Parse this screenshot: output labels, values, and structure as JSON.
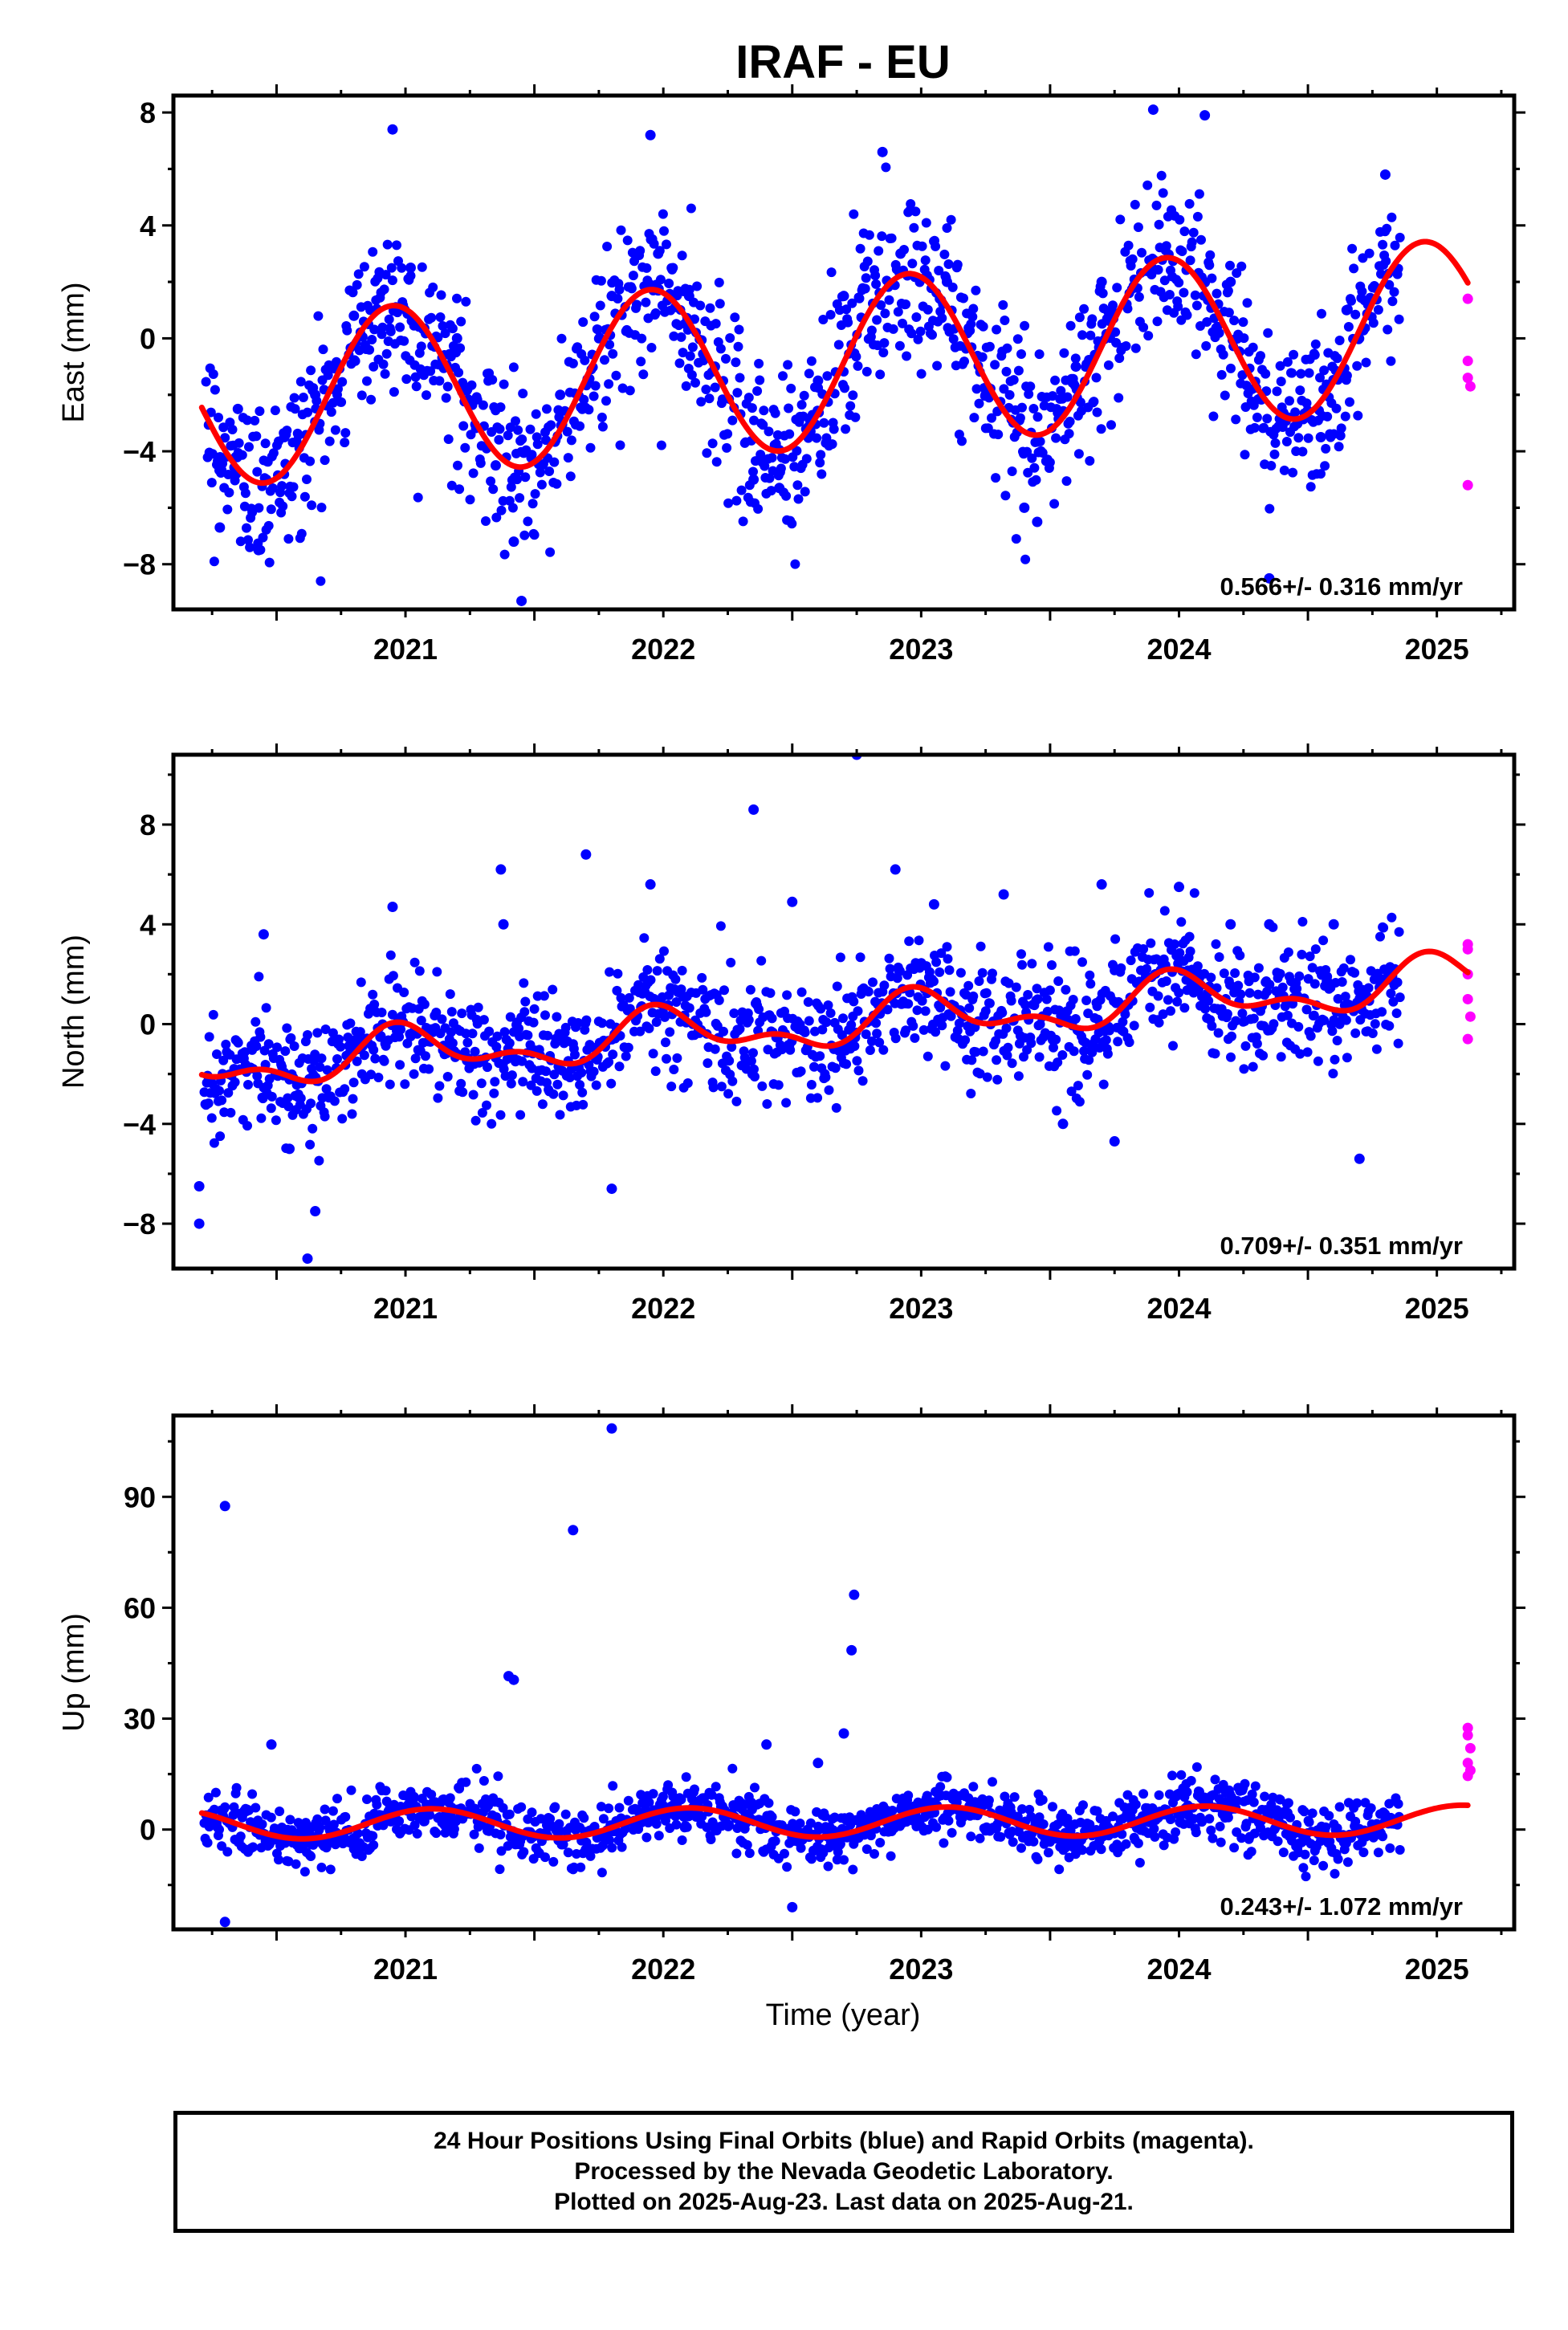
{
  "title": "IRAF - EU",
  "colors": {
    "final": "#0000ff",
    "rapid": "#ff00ff",
    "model": "#ff0000",
    "frame": "#000000"
  },
  "xlabel": "Time (year)",
  "chart_data": [
    {
      "type": "scatter",
      "ylabel": "East (mm)",
      "xlim": [
        2020.6,
        2025.8
      ],
      "ylim": [
        -9.6,
        8.6
      ],
      "yticks": [
        -8,
        -4,
        0,
        4,
        8
      ],
      "ytick_labels": [
        "−8",
        "−4",
        "0",
        "4",
        "8"
      ],
      "xticks": [
        2021,
        2022,
        2023,
        2024,
        2025
      ],
      "annotation": "0.566+/- 0.316 mm/yr",
      "model": {
        "offset": -0.85,
        "rate": 0.566,
        "annual_amplitude": 3.0,
        "annual_peak_year": 2021.45,
        "t_ref": 2023.2,
        "end_x": 2025.62
      },
      "series": [
        {
          "name": "Final Orbits",
          "color": "#0000ff",
          "x": [
            2020.78,
            2020.85,
            2020.93,
            2020.96,
            2021.03,
            2021.15,
            2021.3,
            2021.45,
            2021.52,
            2021.7,
            2021.85,
            2021.92,
            2021.95,
            2022.1,
            2022.3,
            2022.45,
            2022.48,
            2022.6,
            2022.7,
            2022.85,
            2022.95,
            2023.1,
            2023.2,
            2023.35,
            2023.42,
            2023.6,
            2023.75,
            2023.9,
            2023.95,
            2024.1,
            2024.2,
            2024.4,
            2024.6,
            2024.7,
            2024.85,
            2025.05,
            2025.15,
            2025.3
          ],
          "y": [
            -6.7,
            -2.5,
            -7.5,
            -5.0,
            -3.5,
            -2.0,
            0.8,
            7.4,
            2.5,
            0.0,
            -4.5,
            -7.2,
            -9.3,
            -2.0,
            1.5,
            7.2,
            3.0,
            1.5,
            -1.0,
            -5.0,
            -5.3,
            -1.5,
            1.5,
            6.6,
            3.0,
            2.0,
            -2.0,
            -6.0,
            -6.5,
            -1.0,
            2.0,
            8.1,
            7.9,
            2.0,
            -8.5,
            -3.5,
            1.0,
            5.8
          ]
        },
        {
          "name": "Rapid Orbits",
          "color": "#ff00ff",
          "x": [
            2025.62,
            2025.62,
            2025.62,
            2025.63,
            2025.62
          ],
          "y": [
            1.4,
            -0.8,
            -1.4,
            -1.7,
            -5.2
          ]
        }
      ]
    },
    {
      "type": "scatter",
      "ylabel": "North (mm)",
      "xlim": [
        2020.6,
        2025.8
      ],
      "ylim": [
        -9.8,
        10.8
      ],
      "yticks": [
        -8,
        -4,
        0,
        4,
        8
      ],
      "ytick_labels": [
        "−8",
        "−4",
        "0",
        "4",
        "8"
      ],
      "xticks": [
        2021,
        2022,
        2023,
        2024,
        2025
      ],
      "annotation": "0.709+/- 0.351 mm/yr",
      "model": {
        "offset": 0.0,
        "rate": 0.709,
        "annual_amplitude": 0.8,
        "annual_peak_year": 2021.5,
        "semiannual_amplitude": 0.5,
        "semiannual_peak_year": 2021.45,
        "t_ref": 2023.15,
        "end_x": 2025.62
      },
      "series": [
        {
          "name": "Final Orbits",
          "color": "#0000ff",
          "x": [
            2020.7,
            2020.7,
            2020.95,
            2021.05,
            2021.12,
            2021.15,
            2021.45,
            2021.87,
            2021.88,
            2022.2,
            2022.3,
            2022.45,
            2022.85,
            2023.0,
            2023.25,
            2023.4,
            2023.55,
            2023.82,
            2024.05,
            2024.2,
            2024.25,
            2024.5,
            2024.7,
            2024.85,
            2025.1,
            2025.2
          ],
          "y": [
            -6.5,
            -8.0,
            3.6,
            -5.0,
            -9.4,
            -7.5,
            4.7,
            6.2,
            4.0,
            6.8,
            -6.6,
            5.6,
            8.6,
            4.9,
            10.8,
            6.2,
            4.8,
            5.2,
            -4.0,
            5.6,
            -4.7,
            5.5,
            4.0,
            4.0,
            4.0,
            -5.4
          ]
        },
        {
          "name": "Rapid Orbits",
          "color": "#ff00ff",
          "x": [
            2025.62,
            2025.62,
            2025.62,
            2025.63,
            2025.62,
            2025.62
          ],
          "y": [
            3.2,
            2.0,
            1.0,
            0.3,
            -0.6,
            3.0
          ]
        }
      ]
    },
    {
      "type": "scatter",
      "ylabel": "Up (mm)",
      "xlim": [
        2020.6,
        2025.8
      ],
      "ylim": [
        -27,
        112
      ],
      "yticks": [
        0,
        30,
        60,
        90
      ],
      "ytick_labels": [
        "0",
        "30",
        "60",
        "90"
      ],
      "xticks": [
        2021,
        2022,
        2023,
        2024,
        2025
      ],
      "annotation": "0.243+/- 1.072 mm/yr",
      "model": {
        "offset": 2.0,
        "rate": 0.243,
        "annual_amplitude": 4.0,
        "annual_peak_year": 2021.6,
        "t_ref": 2023.2,
        "end_x": 2025.62
      },
      "series": [
        {
          "name": "Final Orbits",
          "color": "#0000ff",
          "x": [
            2020.8,
            2020.8,
            2020.98,
            2021.9,
            2021.92,
            2022.15,
            2022.3,
            2023.24,
            2023.23,
            2023.2,
            2022.9,
            2023.0,
            2023.1
          ],
          "y": [
            87.5,
            -25.0,
            23.0,
            41.5,
            40.5,
            81.0,
            108.5,
            63.5,
            48.5,
            26.0,
            23.0,
            -21.0,
            18.0
          ]
        },
        {
          "name": "Rapid Orbits",
          "color": "#ff00ff",
          "x": [
            2025.62,
            2025.62,
            2025.63,
            2025.62,
            2025.63,
            2025.62
          ],
          "y": [
            27.5,
            25.5,
            22.0,
            18.0,
            16.0,
            14.5
          ]
        }
      ]
    }
  ],
  "caption": {
    "line1": "24 Hour Positions Using Final Orbits (blue) and Rapid Orbits (magenta).",
    "line2": "Processed by the Nevada Geodetic Laboratory.",
    "line3": "Plotted on 2025-Aug-23. Last data on 2025-Aug-21."
  }
}
